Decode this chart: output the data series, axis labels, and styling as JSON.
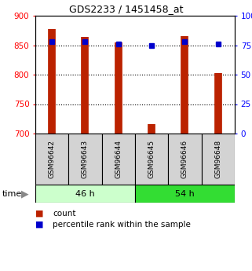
{
  "title": "GDS2233 / 1451458_at",
  "samples": [
    "GSM96642",
    "GSM96643",
    "GSM96644",
    "GSM96645",
    "GSM96646",
    "GSM96648"
  ],
  "count_values": [
    878,
    864,
    855,
    716,
    865,
    803
  ],
  "percentile_values": [
    78,
    78,
    76,
    75,
    78,
    76
  ],
  "groups": [
    {
      "label": "46 h",
      "color_46": "#ccffcc",
      "color_54": "#33dd33"
    },
    {
      "label": "54 h",
      "color_46": "#ccffcc",
      "color_54": "#33dd33"
    }
  ],
  "group_colors": [
    "#ccffcc",
    "#33dd33"
  ],
  "group_labels": [
    "46 h",
    "54 h"
  ],
  "ylim_left": [
    700,
    900
  ],
  "ylim_right": [
    0,
    100
  ],
  "yticks_left": [
    700,
    750,
    800,
    850,
    900
  ],
  "yticks_right": [
    0,
    25,
    50,
    75,
    100
  ],
  "ytick_right_labels": [
    "0",
    "25",
    "50",
    "75",
    "100%"
  ],
  "bar_color": "#bb2200",
  "dot_color": "#0000cc",
  "label_count": "count",
  "label_percentile": "percentile rank within the sample",
  "time_label": "time"
}
